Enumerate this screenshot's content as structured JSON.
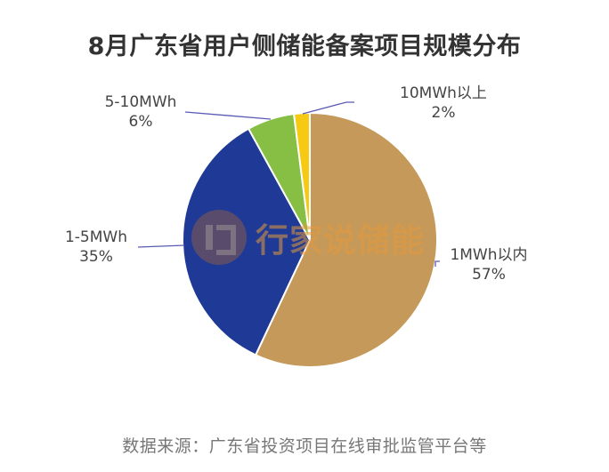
{
  "title": "8月广东省用户侧储能备案项目规模分布",
  "footer": "数据来源：广东省投资项目在线审批监管平台等",
  "watermark": "行家说储能",
  "labels": [
    {
      "name": "1MWh以内",
      "pct": "57%"
    },
    {
      "name": "1-5MWh",
      "pct": "35%"
    },
    {
      "name": "5-10MWh",
      "pct": "6%"
    },
    {
      "name": "10MWh以上",
      "pct": "2%"
    }
  ],
  "chart_data": {
    "type": "pie",
    "title": "8月广东省用户侧储能备案项目规模分布",
    "categories": [
      "1MWh以内",
      "1-5MWh",
      "5-10MWh",
      "10MWh以上"
    ],
    "values": [
      57,
      35,
      6,
      2
    ],
    "unit": "%",
    "colors": [
      "#C4995A",
      "#1F3A96",
      "#86BF44",
      "#F6C913"
    ],
    "start_angle": "12 o'clock",
    "direction": "clockwise",
    "legend": "none (leader-line data labels)",
    "source": "数据来源：广东省投资项目在线审批监管平台等"
  }
}
